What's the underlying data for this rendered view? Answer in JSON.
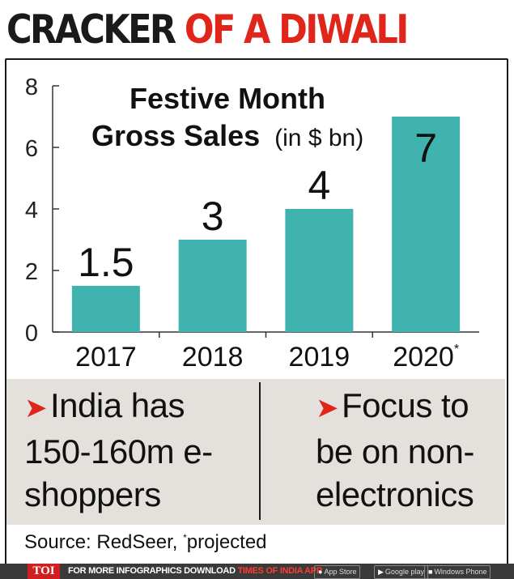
{
  "headline": {
    "part1": "CRACKER",
    "part2": "OF A DIWALI"
  },
  "chart_data": {
    "type": "bar",
    "title_line1": "Festive Month",
    "title_line2": "Gross Sales",
    "title_unit": "(in $ bn)",
    "categories": [
      "2017",
      "2018",
      "2019",
      "2020"
    ],
    "category_marks": [
      "",
      "",
      "",
      "*"
    ],
    "values": [
      1.5,
      3,
      4,
      7
    ],
    "value_labels": [
      "1.5",
      "3",
      "4",
      "7"
    ],
    "yticks": [
      0,
      2,
      4,
      6,
      8
    ],
    "ylim": [
      0,
      8
    ],
    "bar_color": "#40b3ae",
    "grid": false
  },
  "facts": {
    "left": {
      "arrow": "➤",
      "text": "India has 150-160m e-shoppers"
    },
    "right": {
      "arrow": "➤",
      "text": "Focus to be on non-electronics"
    }
  },
  "source": {
    "prefix": "Source: RedSeer, ",
    "mark": "*",
    "suffix": "projected"
  },
  "footer": {
    "logo": "TOI",
    "text_white": "FOR MORE INFOGRAPHICS DOWNLOAD ",
    "text_red": "TIMES OF INDIA APP",
    "stores": [
      "App Store",
      "Google play",
      "Windows Phone"
    ]
  },
  "colors": {
    "accent_red": "#e0251b",
    "panel": "#e4e1dc",
    "footer": "#3a3a3a"
  }
}
